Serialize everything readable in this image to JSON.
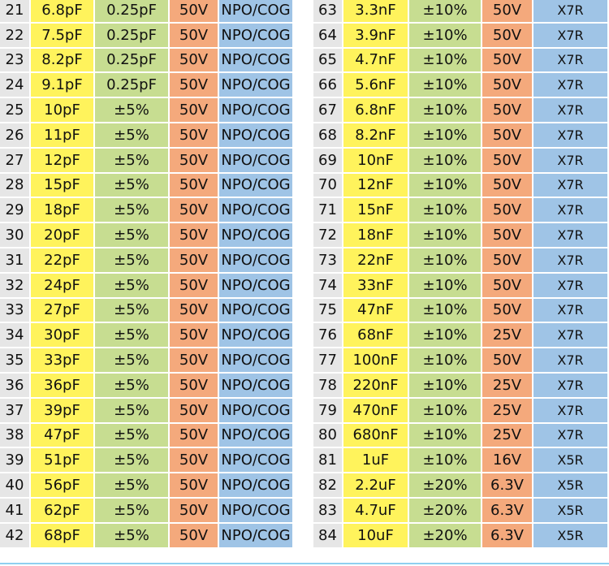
{
  "colors": {
    "index": "#e6e6e6",
    "capacitance": "#fff35c",
    "tolerance": "#c7dd91",
    "voltage": "#f4a97c",
    "dielectric": "#9fc4e6"
  },
  "left_rows": [
    [
      "21",
      "6.8pF",
      "0.25pF",
      "50V",
      "NPO/COG"
    ],
    [
      "22",
      "7.5pF",
      "0.25pF",
      "50V",
      "NPO/COG"
    ],
    [
      "23",
      "8.2pF",
      "0.25pF",
      "50V",
      "NPO/COG"
    ],
    [
      "24",
      "9.1pF",
      "0.25pF",
      "50V",
      "NPO/COG"
    ],
    [
      "25",
      "10pF",
      "±5%",
      "50V",
      "NPO/COG"
    ],
    [
      "26",
      "11pF",
      "±5%",
      "50V",
      "NPO/COG"
    ],
    [
      "27",
      "12pF",
      "±5%",
      "50V",
      "NPO/COG"
    ],
    [
      "28",
      "15pF",
      "±5%",
      "50V",
      "NPO/COG"
    ],
    [
      "29",
      "18pF",
      "±5%",
      "50V",
      "NPO/COG"
    ],
    [
      "30",
      "20pF",
      "±5%",
      "50V",
      "NPO/COG"
    ],
    [
      "31",
      "22pF",
      "±5%",
      "50V",
      "NPO/COG"
    ],
    [
      "32",
      "24pF",
      "±5%",
      "50V",
      "NPO/COG"
    ],
    [
      "33",
      "27pF",
      "±5%",
      "50V",
      "NPO/COG"
    ],
    [
      "34",
      "30pF",
      "±5%",
      "50V",
      "NPO/COG"
    ],
    [
      "35",
      "33pF",
      "±5%",
      "50V",
      "NPO/COG"
    ],
    [
      "36",
      "36pF",
      "±5%",
      "50V",
      "NPO/COG"
    ],
    [
      "37",
      "39pF",
      "±5%",
      "50V",
      "NPO/COG"
    ],
    [
      "38",
      "47pF",
      "±5%",
      "50V",
      "NPO/COG"
    ],
    [
      "39",
      "51pF",
      "±5%",
      "50V",
      "NPO/COG"
    ],
    [
      "40",
      "56pF",
      "±5%",
      "50V",
      "NPO/COG"
    ],
    [
      "41",
      "62pF",
      "±5%",
      "50V",
      "NPO/COG"
    ],
    [
      "42",
      "68pF",
      "±5%",
      "50V",
      "NPO/COG"
    ]
  ],
  "right_rows": [
    [
      "63",
      "3.3nF",
      "±10%",
      "50V",
      "X7R"
    ],
    [
      "64",
      "3.9nF",
      "±10%",
      "50V",
      "X7R"
    ],
    [
      "65",
      "4.7nF",
      "±10%",
      "50V",
      "X7R"
    ],
    [
      "66",
      "5.6nF",
      "±10%",
      "50V",
      "X7R"
    ],
    [
      "67",
      "6.8nF",
      "±10%",
      "50V",
      "X7R"
    ],
    [
      "68",
      "8.2nF",
      "±10%",
      "50V",
      "X7R"
    ],
    [
      "69",
      "10nF",
      "±10%",
      "50V",
      "X7R"
    ],
    [
      "70",
      "12nF",
      "±10%",
      "50V",
      "X7R"
    ],
    [
      "71",
      "15nF",
      "±10%",
      "50V",
      "X7R"
    ],
    [
      "72",
      "18nF",
      "±10%",
      "50V",
      "X7R"
    ],
    [
      "73",
      "22nF",
      "±10%",
      "50V",
      "X7R"
    ],
    [
      "74",
      "33nF",
      "±10%",
      "50V",
      "X7R"
    ],
    [
      "75",
      "47nF",
      "±10%",
      "50V",
      "X7R"
    ],
    [
      "76",
      "68nF",
      "±10%",
      "25V",
      "X7R"
    ],
    [
      "77",
      "100nF",
      "±10%",
      "50V",
      "X7R"
    ],
    [
      "78",
      "220nF",
      "±10%",
      "25V",
      "X7R"
    ],
    [
      "79",
      "470nF",
      "±10%",
      "25V",
      "X7R"
    ],
    [
      "80",
      "680nF",
      "±10%",
      "25V",
      "X7R"
    ],
    [
      "81",
      "1uF",
      "±10%",
      "16V",
      "X5R"
    ],
    [
      "82",
      "2.2uF",
      "±20%",
      "6.3V",
      "X5R"
    ],
    [
      "83",
      "4.7uF",
      "±20%",
      "6.3V",
      "X5R"
    ],
    [
      "84",
      "10uF",
      "±20%",
      "6.3V",
      "X5R"
    ]
  ]
}
